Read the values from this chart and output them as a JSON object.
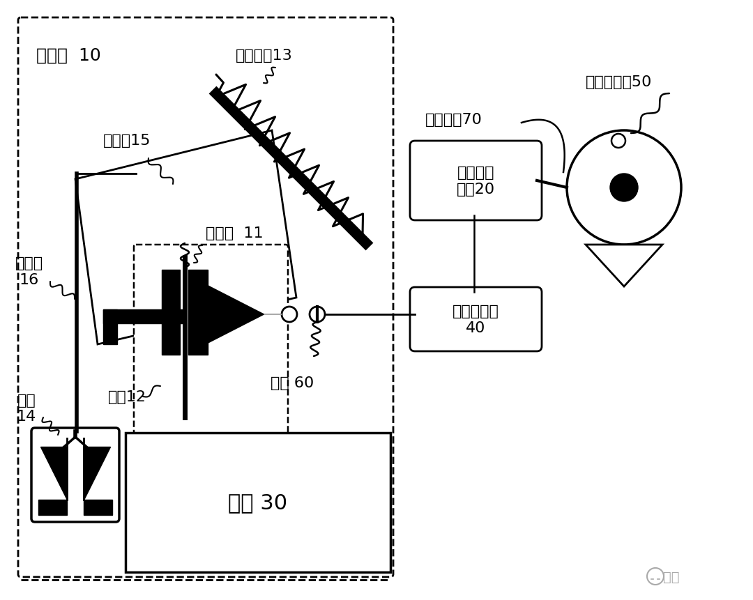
{
  "bg_color": "#ffffff",
  "labels": {
    "anquan_qian": "安全钳  10",
    "tandan_bujian": "弹性部件13",
    "liandong_gan": "联动杆15",
    "dianci_tie": "电磁铁  11",
    "heng_tie": "衡铁12",
    "ti_la_gan": "提拉杆\n16",
    "xie_kuai": "楔块\n14",
    "jiao_xiang": "轿厢 30",
    "kai_guan": "开关 60",
    "anquan_kongzhi_ban": "安全控制板\n40",
    "dianti_zhukong": "电梯主控\n系统20",
    "dianti_zhuji": "电梯主机70",
    "zhuji_bianma_qi": "主机编码器50",
    "watermark": "电梯"
  }
}
